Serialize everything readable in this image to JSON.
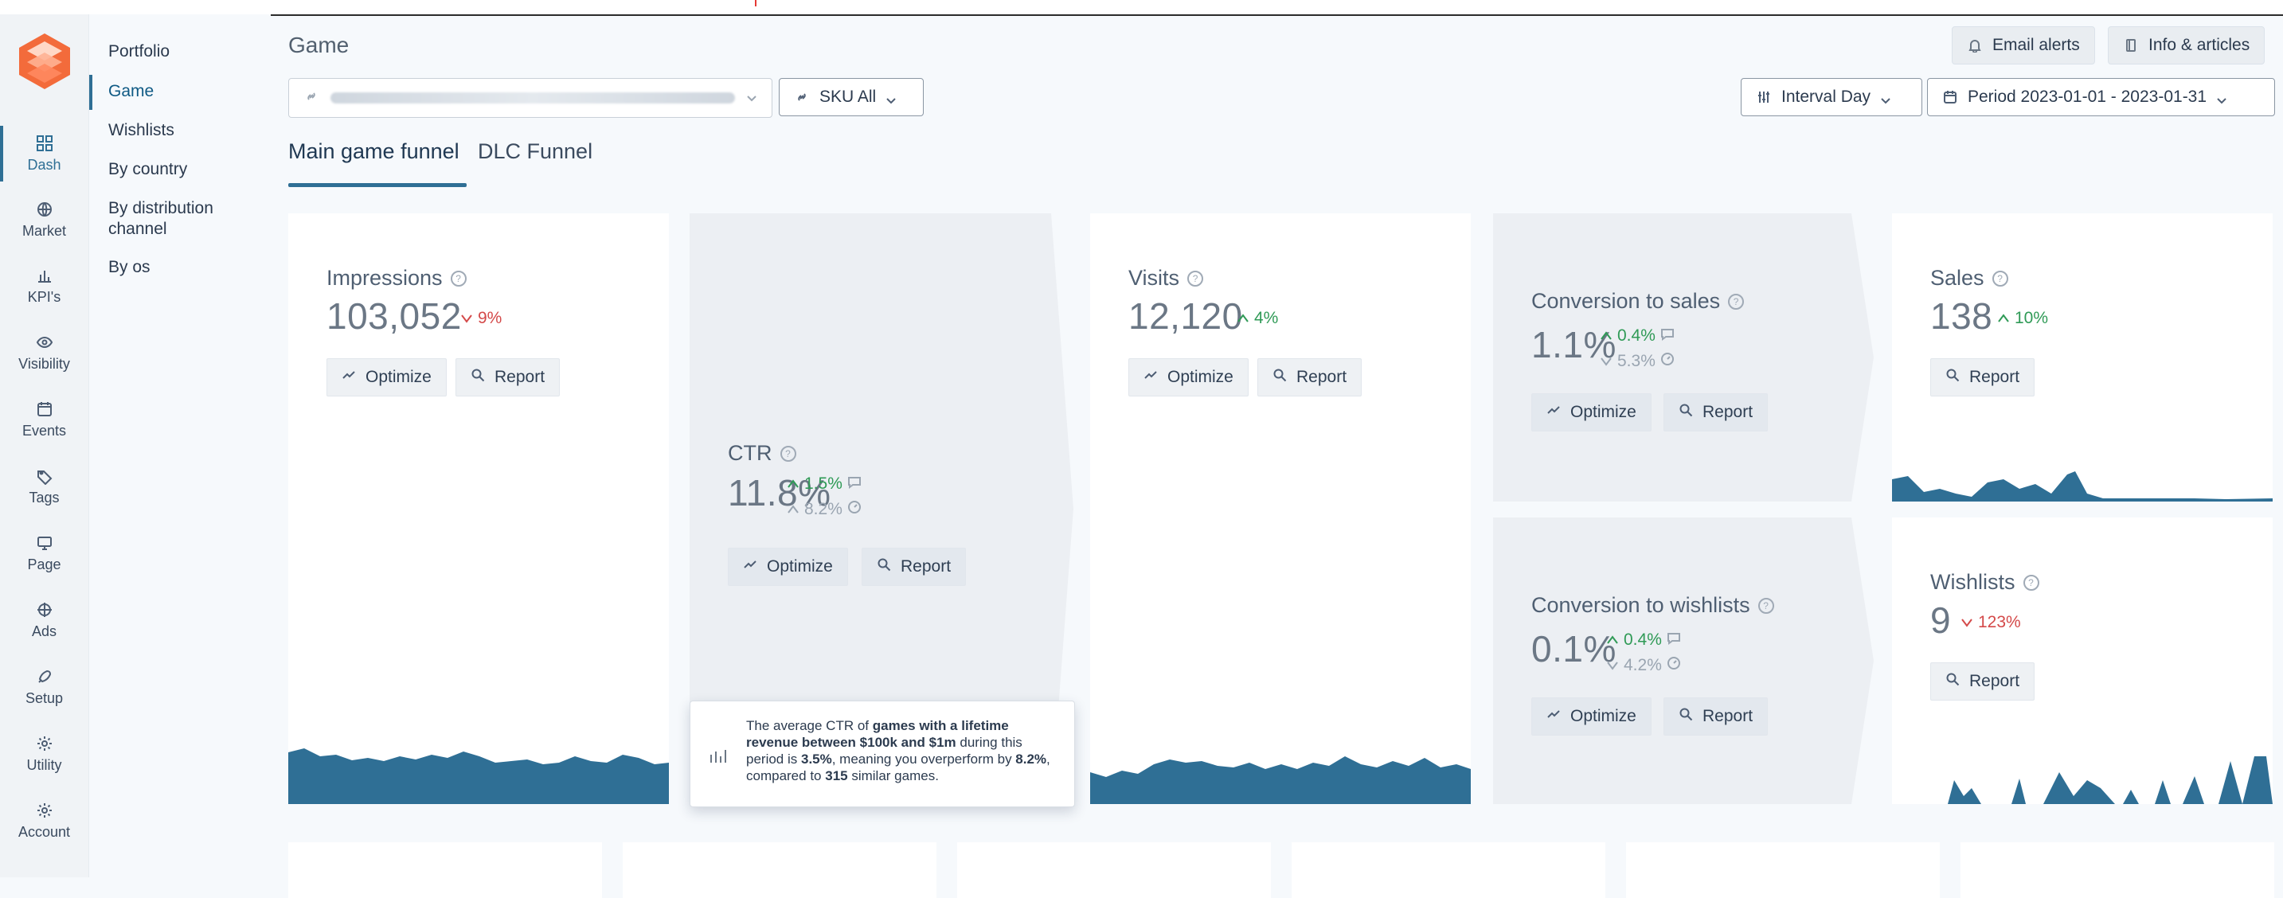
{
  "rail": {
    "items": [
      {
        "label": "Dash",
        "icon": "grid-icon",
        "active": true
      },
      {
        "label": "Market",
        "icon": "globe-icon"
      },
      {
        "label": "KPI's",
        "icon": "bar-chart-icon"
      },
      {
        "label": "Visibility",
        "icon": "eye-icon"
      },
      {
        "label": "Events",
        "icon": "calendar-icon"
      },
      {
        "label": "Tags",
        "icon": "tag-icon"
      },
      {
        "label": "Page",
        "icon": "monitor-icon"
      },
      {
        "label": "Ads",
        "icon": "crosshair-icon"
      },
      {
        "label": "Setup",
        "icon": "rocket-icon"
      },
      {
        "label": "Utility",
        "icon": "gear-icon"
      },
      {
        "label": "Account",
        "icon": "gear-icon"
      }
    ]
  },
  "subnav": {
    "items": [
      {
        "label": "Portfolio"
      },
      {
        "label": "Game",
        "active": true
      },
      {
        "label": "Wishlists"
      },
      {
        "label": "By country"
      },
      {
        "label": "By distribution channel"
      },
      {
        "label": "By os"
      }
    ]
  },
  "header": {
    "title": "Game",
    "email_alerts": "Email alerts",
    "info_articles": "Info & articles",
    "sku": "SKU All",
    "interval": "Interval Day",
    "period": "Period 2023-01-01 - 2023-01-31"
  },
  "tabs": [
    {
      "label": "Main game funnel",
      "active": true
    },
    {
      "label": "DLC Funnel"
    }
  ],
  "cards": {
    "impressions": {
      "title": "Impressions",
      "value": "103,052",
      "delta": "9%",
      "delta_dir": "down",
      "optimize": "Optimize",
      "report": "Report"
    },
    "ctr": {
      "title": "CTR",
      "value": "11.8%",
      "delta1": "1.5%",
      "delta2": "8.2%",
      "optimize": "Optimize",
      "report": "Report"
    },
    "visits": {
      "title": "Visits",
      "value": "12,120",
      "delta": "4%",
      "delta_dir": "up",
      "optimize": "Optimize",
      "report": "Report"
    },
    "conv_sales": {
      "title": "Conversion to sales",
      "value": "1.1%",
      "delta1": "0.4%",
      "delta2": "5.3%",
      "optimize": "Optimize",
      "report": "Report"
    },
    "sales": {
      "title": "Sales",
      "value": "138",
      "delta": "10%",
      "delta_dir": "up",
      "report": "Report"
    },
    "conv_wishlists": {
      "title": "Conversion to wishlists",
      "value": "0.1%",
      "delta1": "0.4%",
      "delta2": "4.2%",
      "optimize": "Optimize",
      "report": "Report"
    },
    "wishlists": {
      "title": "Wishlists",
      "value": "9",
      "delta": "123%",
      "delta_dir": "down",
      "report": "Report"
    }
  },
  "tooltip": {
    "p1": "The average CTR of ",
    "b1": "games with a lifetime revenue between $100k and $1m",
    "p2": " during this period is ",
    "b2": "3.5%",
    "p3": ", meaning you overperform by ",
    "b3": "8.2%",
    "p4": ", compared to ",
    "b4": "315",
    "p5": " similar games."
  },
  "colors": {
    "accent": "#2f6f95",
    "green": "#2f9a56",
    "red": "#d44a4a",
    "brand": "#f25b2a",
    "sparkline": "#2f6f95"
  }
}
